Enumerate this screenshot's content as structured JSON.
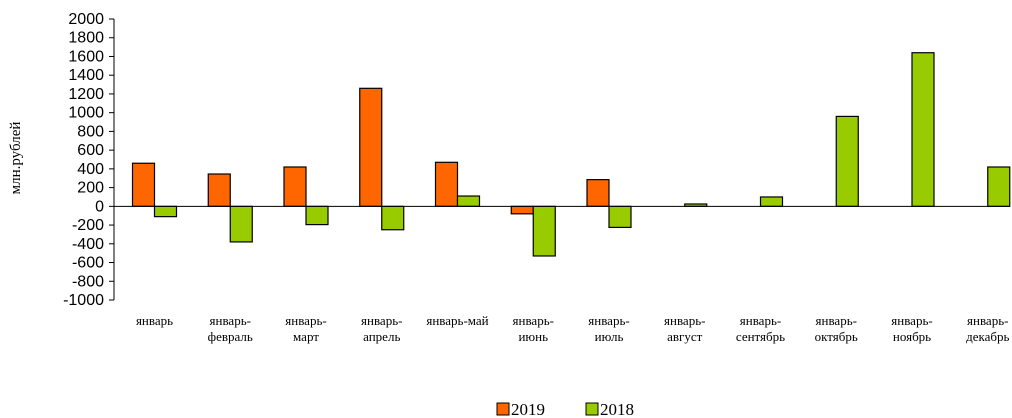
{
  "chart_data": {
    "type": "bar",
    "title": "",
    "xlabel": "",
    "ylabel": "млн.рублей",
    "ylim": [
      -1000,
      2000
    ],
    "ytick_step": 200,
    "grid": false,
    "legend_placement": "bottom-center",
    "categories": [
      [
        "январь"
      ],
      [
        "январь-",
        "февраль"
      ],
      [
        "январь-",
        "март"
      ],
      [
        "январь-",
        "апрель"
      ],
      [
        "январь-май"
      ],
      [
        "январь-",
        "июнь"
      ],
      [
        "январь-",
        "июль"
      ],
      [
        "январь-",
        "август"
      ],
      [
        "январь-",
        "сентябрь"
      ],
      [
        "январь-",
        "октябрь"
      ],
      [
        "январь-",
        "ноябрь"
      ],
      [
        "январь-",
        "декабрь"
      ]
    ],
    "series": [
      {
        "name": "2019",
        "color": "#ff6600",
        "values": [
          460,
          345,
          420,
          1260,
          470,
          -80,
          285,
          null,
          null,
          null,
          null,
          null
        ]
      },
      {
        "name": "2018",
        "color": "#99cc00",
        "values": [
          -110,
          -380,
          -195,
          -250,
          110,
          -530,
          -225,
          25,
          100,
          960,
          1640,
          420
        ]
      }
    ]
  }
}
